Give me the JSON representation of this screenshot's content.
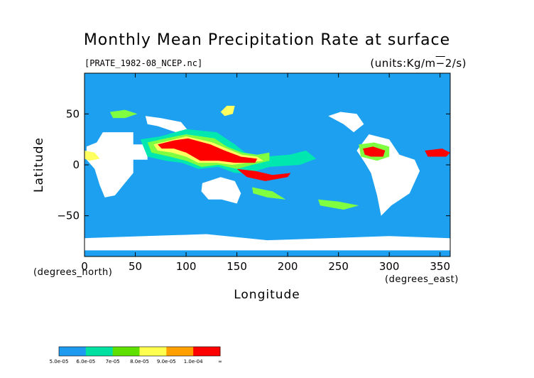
{
  "chart_data": {
    "type": "heatmap",
    "title": "Monthly Mean Precipitation Rate at surface",
    "subtitle": "[PRATE_1982-08_NCEP.nc]",
    "units": "(units:Kg/m^-2/s)",
    "xlabel": "Longitude",
    "ylabel": "Latitude",
    "x_unit_note": "(degrees_east)",
    "y_unit_note": "(degrees_north)",
    "xlim": [
      0,
      360
    ],
    "ylim": [
      -90,
      90
    ],
    "x_ticks": [
      0,
      50,
      100,
      150,
      200,
      250,
      300,
      350
    ],
    "y_ticks": [
      -50,
      0,
      50
    ],
    "x_tick_labels": [
      "0",
      "50",
      "100",
      "150",
      "200",
      "250",
      "300",
      "350"
    ],
    "y_tick_labels": [
      "−50",
      "0",
      "50"
    ],
    "colorbar": {
      "labels": [
        "5.0e-05",
        "6.0e-05",
        "7e-05",
        "8.0e-05",
        "9.0e-05",
        "1.0e-04",
        "∞"
      ],
      "colors": [
        "#1e9bf0",
        "#1e9bf0",
        "#00e0a0",
        "#00e0a0",
        "#60e000",
        "#60e000",
        "#ffff50",
        "#ffff50",
        "#ffa000",
        "#ffa000",
        "#ff0000",
        "#ff0000"
      ]
    },
    "background_color": "#1ea0f0",
    "missing_color": "#ffffff",
    "regions": [
      {
        "level": 1,
        "polygon": [
          [
            55,
            25
          ],
          [
            75,
            28
          ],
          [
            100,
            35
          ],
          [
            130,
            32
          ],
          [
            148,
            20
          ],
          [
            158,
            12
          ],
          [
            178,
            8
          ],
          [
            202,
            10
          ],
          [
            218,
            14
          ],
          [
            228,
            6
          ],
          [
            212,
            0
          ],
          [
            182,
            -2
          ],
          [
            162,
            -8
          ],
          [
            148,
            -8
          ],
          [
            132,
            -2
          ],
          [
            112,
            -4
          ],
          [
            96,
            2
          ],
          [
            80,
            4
          ],
          [
            62,
            8
          ]
        ]
      },
      {
        "level": 2,
        "polygon": [
          [
            62,
            22
          ],
          [
            80,
            26
          ],
          [
            100,
            30
          ],
          [
            128,
            26
          ],
          [
            140,
            18
          ],
          [
            155,
            12
          ],
          [
            170,
            10
          ],
          [
            182,
            12
          ],
          [
            182,
            4
          ],
          [
            165,
            0
          ],
          [
            150,
            -4
          ],
          [
            132,
            0
          ],
          [
            115,
            -2
          ],
          [
            100,
            4
          ],
          [
            84,
            8
          ],
          [
            66,
            12
          ]
        ]
      },
      {
        "level": 3,
        "polygon": [
          [
            68,
            20
          ],
          [
            84,
            24
          ],
          [
            100,
            28
          ],
          [
            126,
            22
          ],
          [
            140,
            16
          ],
          [
            155,
            10
          ],
          [
            170,
            8
          ],
          [
            176,
            4
          ],
          [
            160,
            2
          ],
          [
            145,
            0
          ],
          [
            130,
            2
          ],
          [
            112,
            2
          ],
          [
            100,
            8
          ],
          [
            86,
            12
          ],
          [
            72,
            14
          ]
        ]
      },
      {
        "level": 4,
        "polygon": [
          [
            72,
            20
          ],
          [
            88,
            24
          ],
          [
            102,
            26
          ],
          [
            124,
            20
          ],
          [
            138,
            14
          ],
          [
            154,
            8
          ],
          [
            170,
            6
          ],
          [
            168,
            2
          ],
          [
            148,
            2
          ],
          [
            132,
            4
          ],
          [
            114,
            4
          ],
          [
            100,
            12
          ],
          [
            88,
            16
          ],
          [
            76,
            16
          ]
        ]
      },
      {
        "level": 4,
        "polygon": [
          [
            150,
            -4
          ],
          [
            168,
            -6
          ],
          [
            185,
            -10
          ],
          [
            203,
            -8
          ],
          [
            200,
            -12
          ],
          [
            178,
            -16
          ],
          [
            160,
            -12
          ]
        ]
      },
      {
        "level": 3,
        "polygon": [
          [
            140,
            58
          ],
          [
            148,
            58
          ],
          [
            146,
            50
          ],
          [
            138,
            48
          ],
          [
            134,
            52
          ]
        ]
      },
      {
        "level": 2,
        "polygon": [
          [
            270,
            20
          ],
          [
            285,
            22
          ],
          [
            300,
            18
          ],
          [
            300,
            8
          ],
          [
            288,
            4
          ],
          [
            272,
            8
          ]
        ]
      },
      {
        "level": 4,
        "polygon": [
          [
            274,
            16
          ],
          [
            284,
            18
          ],
          [
            296,
            14
          ],
          [
            294,
            8
          ],
          [
            282,
            8
          ],
          [
            276,
            10
          ]
        ]
      },
      {
        "level": 4,
        "polygon": [
          [
            335,
            14
          ],
          [
            352,
            16
          ],
          [
            360,
            12
          ],
          [
            356,
            8
          ],
          [
            338,
            8
          ]
        ]
      },
      {
        "level": 3,
        "polygon": [
          [
            0,
            14
          ],
          [
            10,
            12
          ],
          [
            15,
            6
          ],
          [
            5,
            4
          ],
          [
            0,
            6
          ]
        ]
      },
      {
        "level": 2,
        "polygon": [
          [
            25,
            52
          ],
          [
            40,
            54
          ],
          [
            52,
            50
          ],
          [
            40,
            46
          ],
          [
            28,
            46
          ]
        ]
      },
      {
        "level": 2,
        "polygon": [
          [
            230,
            -34
          ],
          [
            250,
            -36
          ],
          [
            270,
            -40
          ],
          [
            255,
            -44
          ],
          [
            232,
            -40
          ]
        ]
      },
      {
        "level": 2,
        "polygon": [
          [
            165,
            -22
          ],
          [
            185,
            -26
          ],
          [
            198,
            -34
          ],
          [
            180,
            -32
          ],
          [
            166,
            -28
          ]
        ]
      }
    ],
    "missing_blocks": [
      [
        [
          18,
          32
        ],
        [
          48,
          32
        ],
        [
          48,
          20
        ],
        [
          62,
          20
        ],
        [
          62,
          5
        ],
        [
          48,
          5
        ],
        [
          48,
          -8
        ],
        [
          38,
          -20
        ],
        [
          30,
          -30
        ],
        [
          20,
          -32
        ],
        [
          15,
          -20
        ],
        [
          10,
          -4
        ],
        [
          2,
          5
        ],
        [
          2,
          18
        ],
        [
          12,
          22
        ]
      ],
      [
        [
          116,
          -18
        ],
        [
          134,
          -12
        ],
        [
          148,
          -16
        ],
        [
          154,
          -28
        ],
        [
          150,
          -38
        ],
        [
          135,
          -34
        ],
        [
          122,
          -34
        ],
        [
          115,
          -26
        ]
      ],
      [
        [
          0,
          -72
        ],
        [
          60,
          -70
        ],
        [
          120,
          -68
        ],
        [
          180,
          -74
        ],
        [
          240,
          -72
        ],
        [
          300,
          -70
        ],
        [
          360,
          -72
        ],
        [
          360,
          -84
        ],
        [
          0,
          -84
        ]
      ],
      [
        [
          280,
          30
        ],
        [
          300,
          25
        ],
        [
          310,
          10
        ],
        [
          325,
          5
        ],
        [
          330,
          -6
        ],
        [
          320,
          -28
        ],
        [
          302,
          -40
        ],
        [
          292,
          -50
        ],
        [
          288,
          -30
        ],
        [
          282,
          -8
        ],
        [
          276,
          2
        ],
        [
          268,
          14
        ]
      ],
      [
        [
          240,
          48
        ],
        [
          255,
          40
        ],
        [
          265,
          32
        ],
        [
          275,
          40
        ],
        [
          268,
          50
        ],
        [
          252,
          52
        ]
      ],
      [
        [
          60,
          48
        ],
        [
          75,
          46
        ],
        [
          95,
          42
        ],
        [
          105,
          30
        ],
        [
          90,
          32
        ],
        [
          72,
          38
        ],
        [
          62,
          40
        ]
      ]
    ]
  }
}
